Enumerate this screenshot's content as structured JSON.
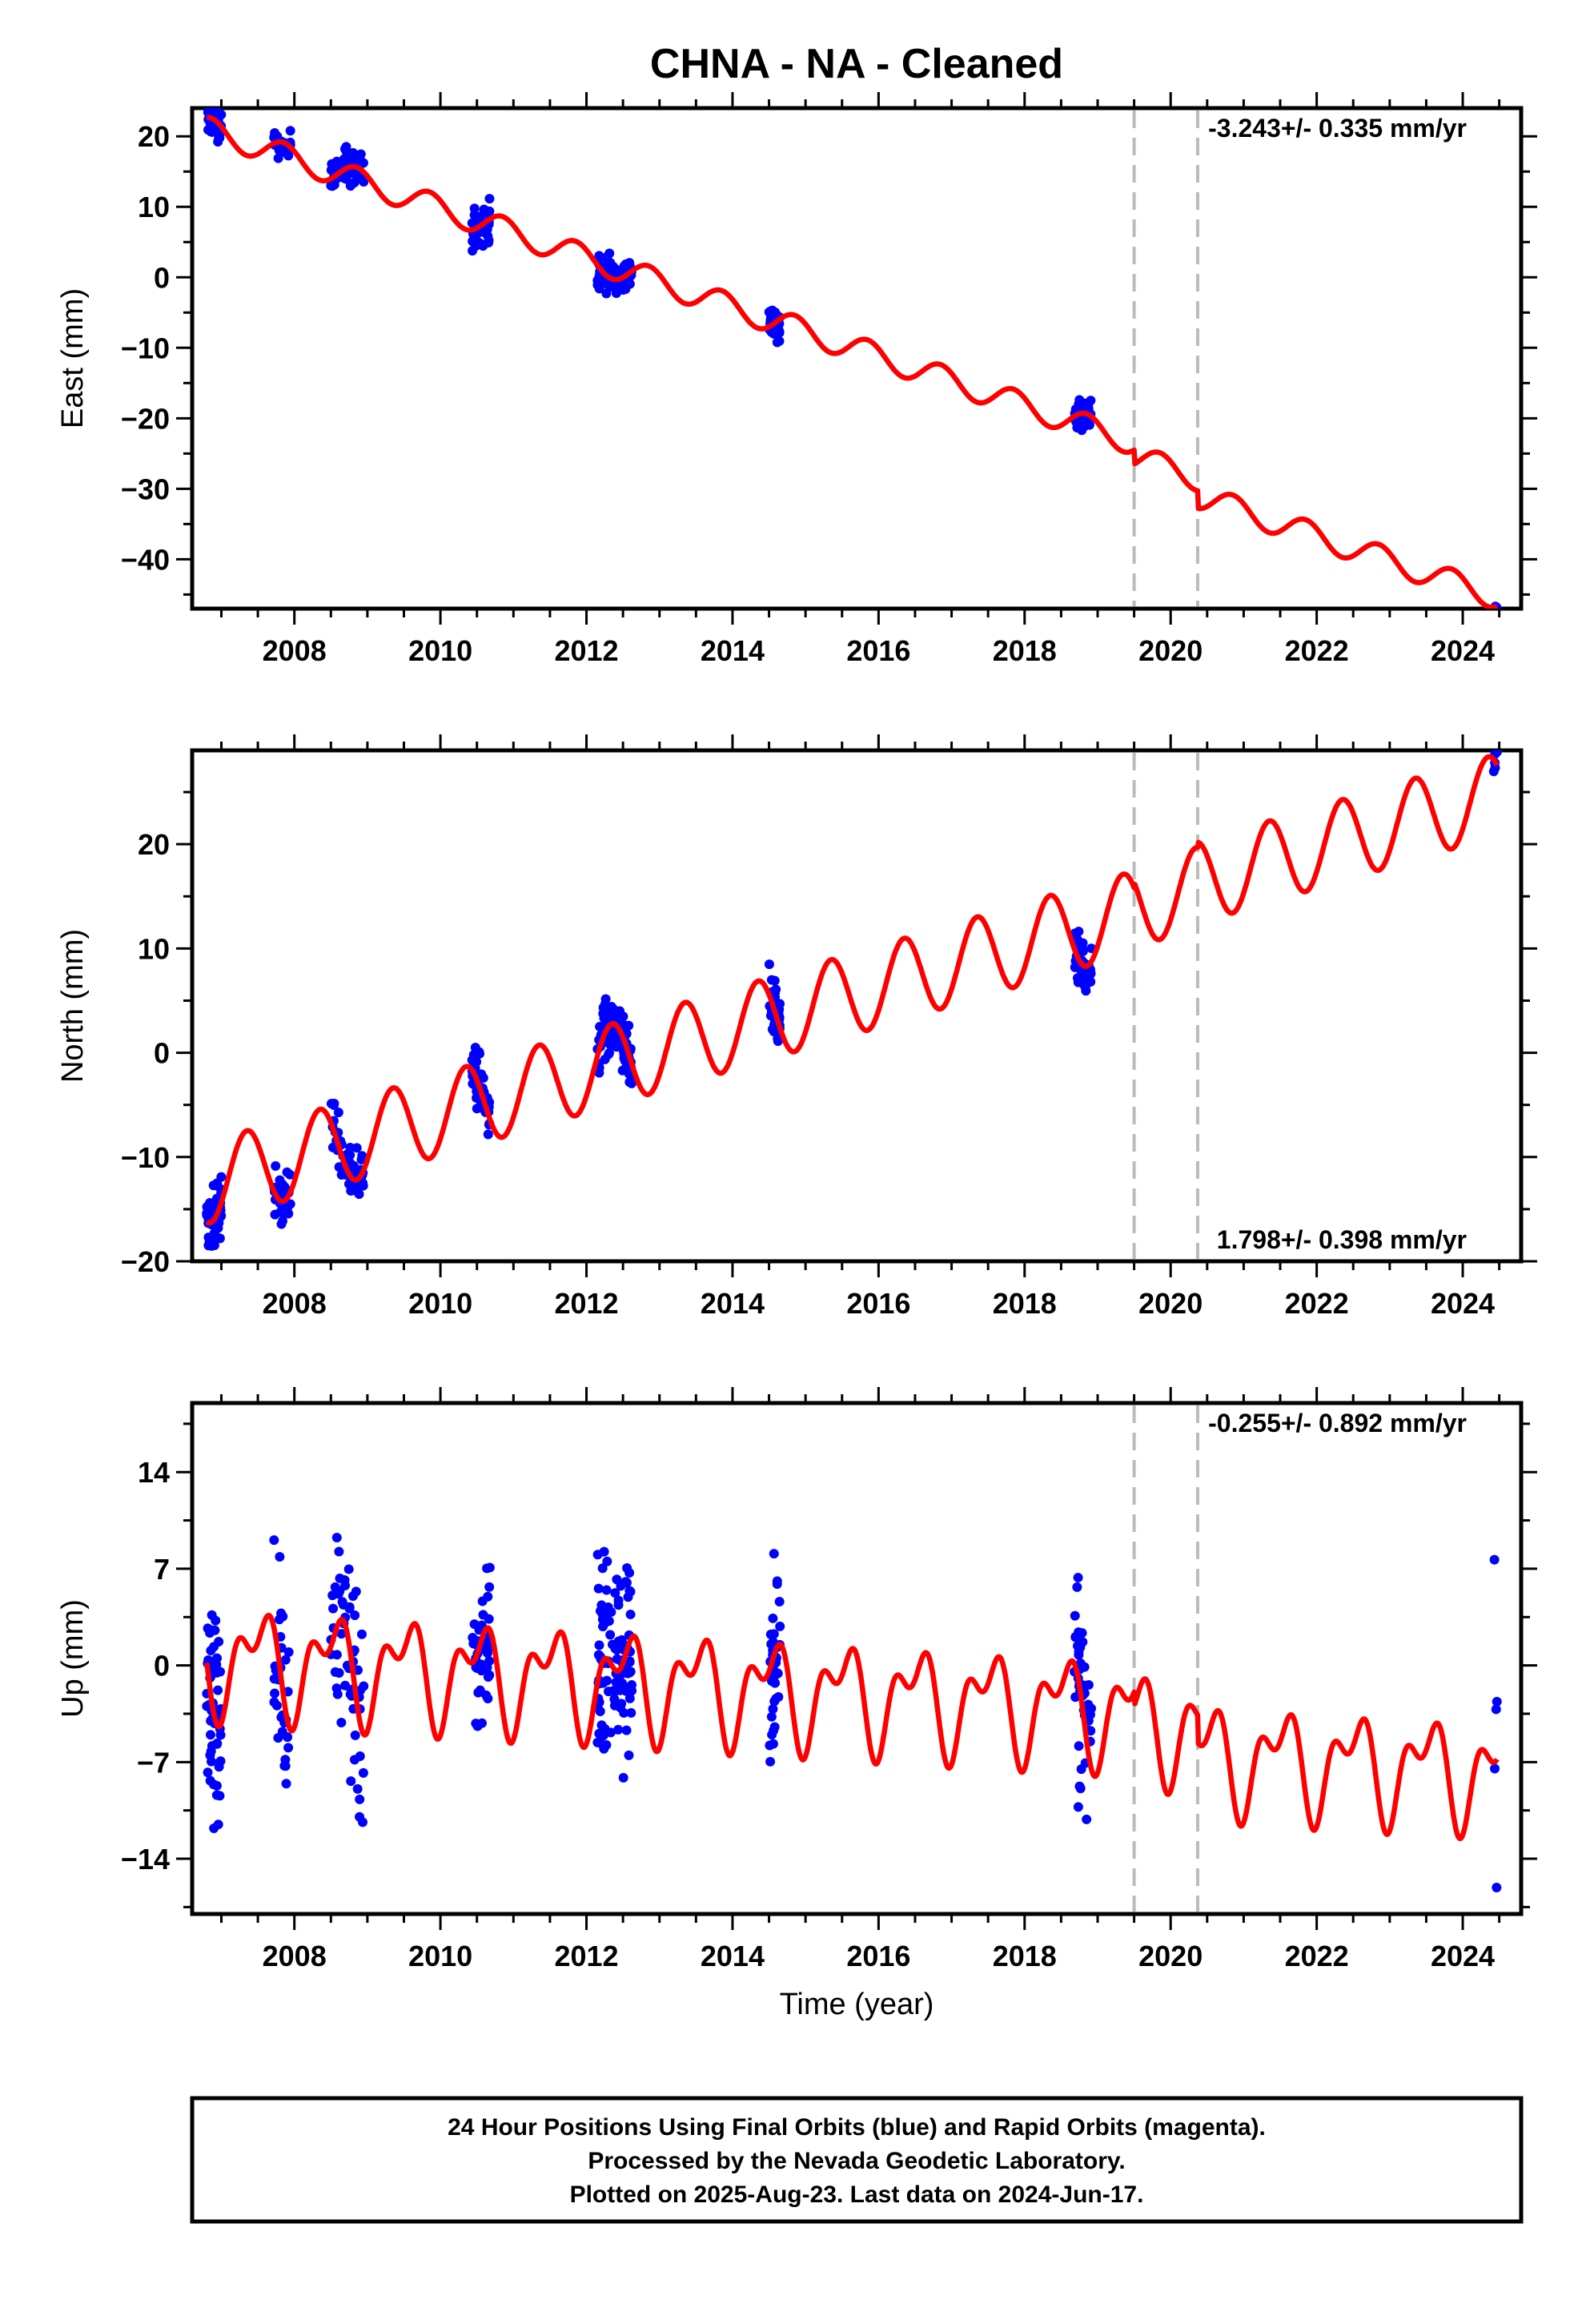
{
  "chart_data": {
    "title": "CHNA  - NA - Cleaned",
    "type": "scatter",
    "x_label": "Time (year)",
    "x_range": [
      2006.6,
      2024.8
    ],
    "x_ticks": [
      "2008",
      "2010",
      "2012",
      "2014",
      "2016",
      "2018",
      "2020",
      "2022",
      "2024"
    ],
    "markers": [
      2019.5,
      2020.37
    ],
    "colors": {
      "points": "#0000ff",
      "model": "#ff0000",
      "markers": "#bbbbbb"
    },
    "panels": [
      {
        "ylabel": "East (mm)",
        "ylim": [
          -47,
          24
        ],
        "y_ticks": [
          20,
          10,
          0,
          -10,
          -20,
          -30,
          -40
        ],
        "rate": "-3.243+/- 0.335 mm/yr",
        "rate_position": "top-right",
        "model": {
          "offset": 21.0,
          "t0": 2006.8,
          "trend": -3.5,
          "amplitude": 1.8,
          "phase": 2006.85,
          "harmonic": 0.0,
          "harmonic_phase": 0.0,
          "steps": [
            [
              2019.5,
              -2.0
            ],
            [
              2020.37,
              -2.5
            ]
          ]
        },
        "clusters": [
          {
            "start": 2006.8,
            "end": 2007.0,
            "count": 55,
            "residual": 1.2
          },
          {
            "start": 2007.72,
            "end": 2007.95,
            "count": 30,
            "residual": 1.0
          },
          {
            "start": 2008.5,
            "end": 2008.95,
            "count": 60,
            "residual": 1.3
          },
          {
            "start": 2010.43,
            "end": 2010.68,
            "count": 45,
            "residual": 1.4
          },
          {
            "start": 2012.15,
            "end": 2012.62,
            "count": 110,
            "residual": 1.3
          },
          {
            "start": 2014.5,
            "end": 2014.65,
            "count": 40,
            "residual": 1.2
          },
          {
            "start": 2018.68,
            "end": 2018.92,
            "count": 45,
            "residual": 1.2
          },
          {
            "start": 2024.42,
            "end": 2024.47,
            "count": 5,
            "residual": 0.8
          }
        ]
      },
      {
        "ylabel": "North (mm)",
        "ylim": [
          -20,
          29
        ],
        "y_ticks": [
          20,
          10,
          0,
          -10,
          -20
        ],
        "rate": "1.798+/- 0.398 mm/yr",
        "rate_position": "bottom-right",
        "model": {
          "offset": -12.5,
          "t0": 2006.8,
          "trend": 2.05,
          "amplitude": 3.9,
          "phase": 2007.35,
          "harmonic": 0.0,
          "harmonic_phase": 0.0,
          "steps": [
            [
              2019.5,
              0.5
            ],
            [
              2020.37,
              0.5
            ]
          ]
        },
        "clusters": [
          {
            "start": 2006.8,
            "end": 2007.0,
            "count": 55,
            "residual": 1.5
          },
          {
            "start": 2007.72,
            "end": 2007.95,
            "count": 30,
            "residual": 1.3
          },
          {
            "start": 2008.5,
            "end": 2008.95,
            "count": 60,
            "residual": 1.3
          },
          {
            "start": 2010.43,
            "end": 2010.68,
            "count": 45,
            "residual": 1.3
          },
          {
            "start": 2012.15,
            "end": 2012.62,
            "count": 110,
            "residual": 1.4
          },
          {
            "start": 2014.5,
            "end": 2014.65,
            "count": 40,
            "residual": 1.2
          },
          {
            "start": 2018.68,
            "end": 2018.92,
            "count": 45,
            "residual": 1.2
          },
          {
            "start": 2024.42,
            "end": 2024.47,
            "count": 5,
            "residual": 0.8
          }
        ]
      },
      {
        "ylabel": "Up (mm)",
        "ylim": [
          -18,
          19
        ],
        "y_ticks": [
          14,
          7,
          0,
          -7,
          -14
        ],
        "rate": "-0.255+/- 0.892 mm/yr",
        "rate_position": "top-right",
        "model": {
          "offset": 0.5,
          "t0": 2006.8,
          "trend": -0.3,
          "amplitude": 3.0,
          "phase": 2007.5,
          "harmonic": 2.0,
          "harmonic_phase": 2007.2,
          "steps": [
            [
              2019.5,
              -1.0
            ],
            [
              2020.37,
              -2.0
            ]
          ]
        },
        "clusters": [
          {
            "start": 2006.8,
            "end": 2007.0,
            "count": 55,
            "residual": 3.5
          },
          {
            "start": 2007.72,
            "end": 2007.95,
            "count": 30,
            "residual": 3.5
          },
          {
            "start": 2008.5,
            "end": 2008.95,
            "count": 60,
            "residual": 4.5
          },
          {
            "start": 2010.43,
            "end": 2010.68,
            "count": 45,
            "residual": 3.0
          },
          {
            "start": 2012.15,
            "end": 2012.62,
            "count": 110,
            "residual": 4.0
          },
          {
            "start": 2014.5,
            "end": 2014.65,
            "count": 40,
            "residual": 3.5
          },
          {
            "start": 2018.68,
            "end": 2018.92,
            "count": 45,
            "residual": 3.5
          },
          {
            "start": 2024.42,
            "end": 2024.47,
            "count": 5,
            "residual": 5.0
          }
        ]
      }
    ]
  },
  "footer": {
    "line1": "24 Hour Positions Using Final Orbits (blue) and Rapid Orbits (magenta).",
    "line2": "Processed by the Nevada Geodetic Laboratory.",
    "line3": "Plotted on 2025-Aug-23. Last data on 2024-Jun-17."
  }
}
